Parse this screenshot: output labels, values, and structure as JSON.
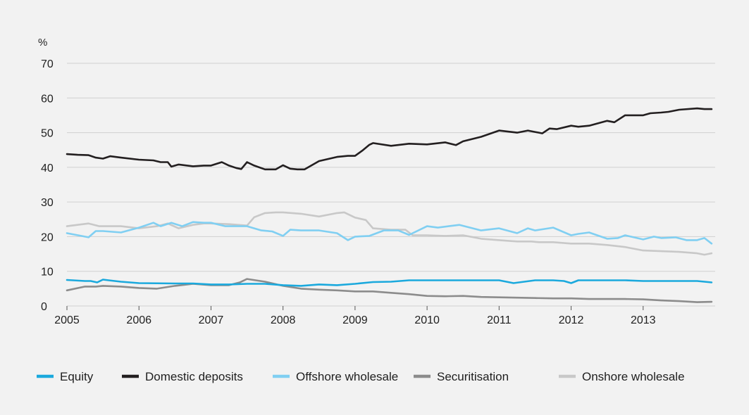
{
  "chart_data": {
    "type": "line",
    "ylabel": "%",
    "ylim": [
      0,
      70
    ],
    "xlim": [
      2005,
      2014
    ],
    "x_ticks": [
      "2005",
      "2006",
      "2007",
      "2008",
      "2009",
      "2010",
      "2011",
      "2012",
      "2013"
    ],
    "y_ticks": [
      "0",
      "10",
      "20",
      "30",
      "40",
      "50",
      "60",
      "70"
    ],
    "grid": "horizontal",
    "legend_position": "bottom",
    "series": [
      {
        "name": "Equity",
        "color": "#1ba9dd",
        "x": [
          2005.0,
          2005.25,
          2005.33,
          2005.42,
          2005.5,
          2005.58,
          2005.75,
          2006.0,
          2006.5,
          2006.75,
          2007.0,
          2007.25,
          2007.5,
          2007.75,
          2008.0,
          2008.25,
          2008.5,
          2008.75,
          2009.0,
          2009.25,
          2009.5,
          2009.75,
          2010.0,
          2010.25,
          2010.5,
          2010.75,
          2011.0,
          2011.1,
          2011.2,
          2011.5,
          2011.75,
          2011.9,
          2012.0,
          2012.1,
          2012.5,
          2012.75,
          2013.0,
          2013.25,
          2013.5,
          2013.75,
          2013.95
        ],
        "y": [
          7.5,
          7.2,
          7.2,
          6.8,
          7.6,
          7.4,
          7.0,
          6.6,
          6.5,
          6.5,
          6.2,
          6.2,
          6.4,
          6.4,
          6.0,
          5.8,
          6.2,
          6.0,
          6.4,
          6.9,
          7.0,
          7.4,
          7.4,
          7.4,
          7.4,
          7.4,
          7.4,
          7.0,
          6.6,
          7.4,
          7.4,
          7.2,
          6.6,
          7.4,
          7.4,
          7.4,
          7.2,
          7.2,
          7.2,
          7.2,
          6.8
        ]
      },
      {
        "name": "Domestic deposits",
        "color": "#231f20",
        "x": [
          2005.0,
          2005.15,
          2005.3,
          2005.4,
          2005.5,
          2005.6,
          2005.75,
          2006.0,
          2006.2,
          2006.3,
          2006.4,
          2006.45,
          2006.55,
          2006.75,
          2006.9,
          2007.0,
          2007.15,
          2007.25,
          2007.35,
          2007.42,
          2007.5,
          2007.6,
          2007.75,
          2007.9,
          2008.0,
          2008.1,
          2008.2,
          2008.3,
          2008.5,
          2008.75,
          2008.9,
          2009.0,
          2009.1,
          2009.2,
          2009.25,
          2009.5,
          2009.75,
          2010.0,
          2010.25,
          2010.4,
          2010.5,
          2010.75,
          2011.0,
          2011.25,
          2011.4,
          2011.5,
          2011.6,
          2011.7,
          2011.8,
          2012.0,
          2012.1,
          2012.25,
          2012.5,
          2012.6,
          2012.75,
          2013.0,
          2013.1,
          2013.25,
          2013.35,
          2013.5,
          2013.75,
          2013.85,
          2013.95
        ],
        "y": [
          43.8,
          43.6,
          43.5,
          42.8,
          42.5,
          43.2,
          42.8,
          42.2,
          42.0,
          41.5,
          41.5,
          40.2,
          40.8,
          40.3,
          40.5,
          40.5,
          41.5,
          40.5,
          39.8,
          39.5,
          41.5,
          40.5,
          39.4,
          39.4,
          40.6,
          39.6,
          39.4,
          39.4,
          41.8,
          43.0,
          43.3,
          43.3,
          44.8,
          46.5,
          47.0,
          46.2,
          46.8,
          46.6,
          47.2,
          46.4,
          47.5,
          48.8,
          50.6,
          50.0,
          50.6,
          50.2,
          49.8,
          51.2,
          51.0,
          52.0,
          51.7,
          52.0,
          53.4,
          53.0,
          55.0,
          55.0,
          55.6,
          55.8,
          56.0,
          56.6,
          57.0,
          56.8,
          56.8
        ]
      },
      {
        "name": "Offshore wholesale",
        "color": "#80cff2",
        "x": [
          2005.0,
          2005.2,
          2005.3,
          2005.4,
          2005.5,
          2005.75,
          2006.0,
          2006.2,
          2006.3,
          2006.45,
          2006.6,
          2006.75,
          2006.9,
          2007.0,
          2007.2,
          2007.5,
          2007.7,
          2007.85,
          2008.0,
          2008.1,
          2008.25,
          2008.5,
          2008.75,
          2008.9,
          2009.0,
          2009.2,
          2009.4,
          2009.6,
          2009.75,
          2010.0,
          2010.15,
          2010.3,
          2010.45,
          2010.75,
          2011.0,
          2011.25,
          2011.4,
          2011.5,
          2011.75,
          2012.0,
          2012.1,
          2012.25,
          2012.5,
          2012.65,
          2012.75,
          2013.0,
          2013.15,
          2013.25,
          2013.45,
          2013.6,
          2013.75,
          2013.85,
          2013.95
        ],
        "y": [
          21.0,
          20.2,
          19.8,
          21.6,
          21.6,
          21.2,
          22.6,
          24.0,
          23.0,
          24.0,
          23.0,
          24.2,
          24.0,
          24.0,
          23.0,
          23.0,
          21.8,
          21.5,
          20.2,
          22.0,
          21.8,
          21.8,
          21.0,
          19.0,
          20.0,
          20.2,
          21.8,
          21.8,
          20.5,
          23.0,
          22.6,
          23.0,
          23.4,
          21.8,
          22.4,
          21.0,
          22.4,
          21.8,
          22.6,
          20.4,
          20.8,
          21.2,
          19.4,
          19.6,
          20.4,
          19.2,
          20.0,
          19.6,
          19.8,
          19.0,
          19.0,
          19.6,
          18.0
        ]
      },
      {
        "name": "Securitisation",
        "color": "#8c8c8c",
        "x": [
          2005.0,
          2005.25,
          2005.4,
          2005.5,
          2005.75,
          2006.0,
          2006.25,
          2006.5,
          2006.75,
          2007.0,
          2007.25,
          2007.4,
          2007.5,
          2007.75,
          2008.0,
          2008.25,
          2008.5,
          2008.75,
          2009.0,
          2009.25,
          2009.5,
          2009.75,
          2010.0,
          2010.25,
          2010.5,
          2010.75,
          2011.0,
          2011.25,
          2011.5,
          2011.75,
          2012.0,
          2012.25,
          2012.5,
          2012.75,
          2013.0,
          2013.25,
          2013.5,
          2013.75,
          2013.95
        ],
        "y": [
          4.5,
          5.6,
          5.6,
          5.8,
          5.6,
          5.2,
          5.0,
          5.8,
          6.4,
          6.0,
          6.0,
          6.8,
          7.8,
          7.0,
          5.8,
          5.0,
          4.7,
          4.5,
          4.2,
          4.2,
          3.8,
          3.4,
          2.9,
          2.8,
          2.9,
          2.6,
          2.5,
          2.4,
          2.3,
          2.2,
          2.2,
          2.0,
          2.0,
          2.0,
          1.9,
          1.6,
          1.4,
          1.1,
          1.2
        ]
      },
      {
        "name": "Onshore wholesale",
        "color": "#c8c8c8",
        "x": [
          2005.0,
          2005.3,
          2005.45,
          2005.6,
          2005.75,
          2006.0,
          2006.25,
          2006.4,
          2006.55,
          2006.75,
          2006.9,
          2007.0,
          2007.25,
          2007.5,
          2007.6,
          2007.75,
          2007.9,
          2008.0,
          2008.25,
          2008.5,
          2008.75,
          2008.85,
          2009.0,
          2009.15,
          2009.25,
          2009.5,
          2009.7,
          2009.8,
          2010.0,
          2010.25,
          2010.5,
          2010.75,
          2011.0,
          2011.25,
          2011.35,
          2011.45,
          2011.55,
          2011.75,
          2012.0,
          2012.25,
          2012.5,
          2012.75,
          2013.0,
          2013.25,
          2013.5,
          2013.75,
          2013.85,
          2013.95
        ],
        "y": [
          23.0,
          23.8,
          23.0,
          23.0,
          23.0,
          22.4,
          23.0,
          23.8,
          22.4,
          23.4,
          23.8,
          23.8,
          23.6,
          23.2,
          25.6,
          26.8,
          27.0,
          27.0,
          26.6,
          25.8,
          26.8,
          27.0,
          25.5,
          24.8,
          22.4,
          22.0,
          22.0,
          20.4,
          20.4,
          20.2,
          20.4,
          19.4,
          19.0,
          18.6,
          18.6,
          18.6,
          18.4,
          18.4,
          18.0,
          18.0,
          17.6,
          17.0,
          16.0,
          15.8,
          15.6,
          15.2,
          14.8,
          15.2
        ]
      }
    ]
  }
}
